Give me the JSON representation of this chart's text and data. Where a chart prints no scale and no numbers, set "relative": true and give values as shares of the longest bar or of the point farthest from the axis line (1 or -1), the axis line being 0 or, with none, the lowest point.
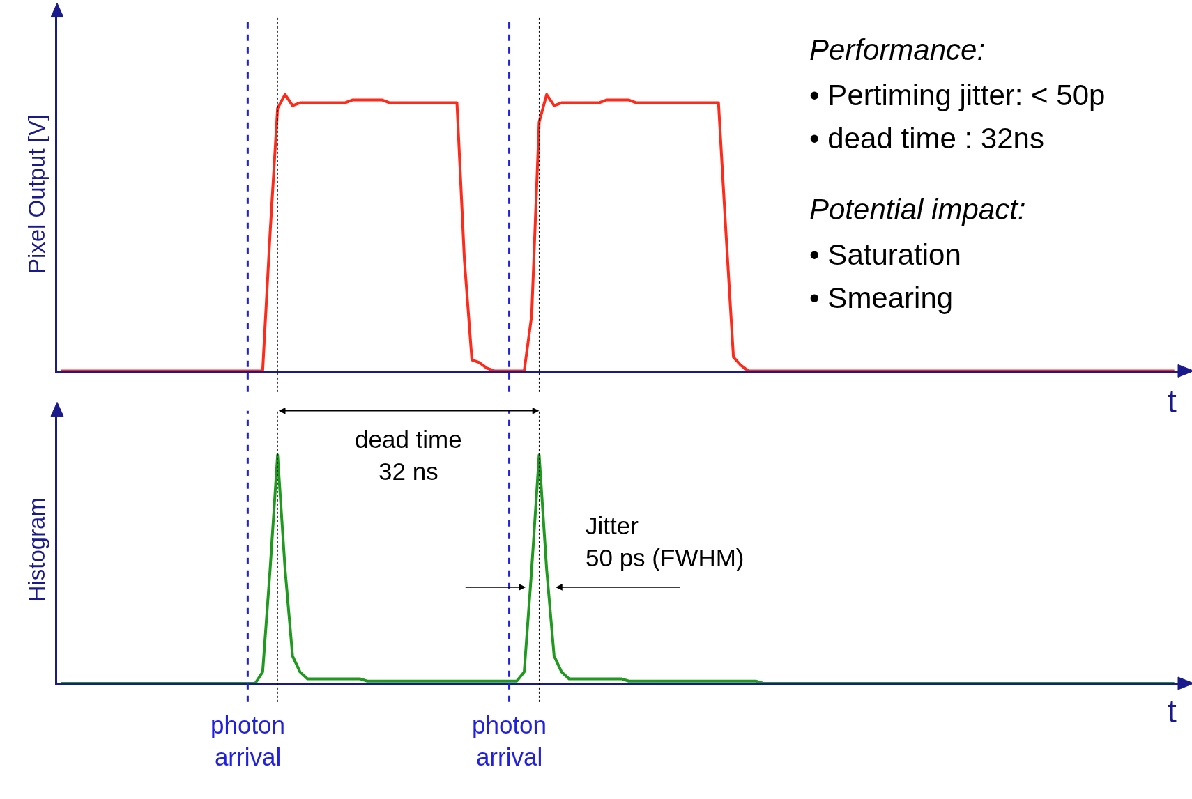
{
  "chart_data": [
    {
      "type": "line",
      "relative": true,
      "ylabel": "Pixel Output [V]",
      "xlabel": "t",
      "categories": [
        null,
        null,
        null,
        null,
        null,
        null,
        null,
        null,
        null,
        null,
        null,
        null,
        null,
        null,
        null,
        null,
        null,
        null,
        null,
        null,
        null,
        null,
        null,
        null,
        null,
        null,
        null,
        null,
        null,
        null,
        null,
        null,
        null,
        null,
        null,
        null,
        null,
        null,
        null,
        null,
        null,
        null,
        null,
        null,
        null,
        null,
        null,
        null,
        null,
        null,
        null,
        null,
        null,
        null,
        null,
        null,
        null,
        null,
        null,
        null,
        null,
        null,
        null,
        null,
        null,
        null,
        null,
        null,
        null,
        null,
        null,
        null,
        null,
        null,
        null,
        null,
        null,
        null,
        null,
        null,
        null,
        null,
        null,
        null,
        null,
        null,
        null,
        null,
        null,
        null,
        null,
        null,
        null,
        null,
        null,
        null,
        null,
        null,
        null,
        null,
        null,
        null,
        null,
        null,
        null,
        null,
        null,
        null,
        null,
        null,
        null,
        null,
        null,
        null,
        null,
        null,
        null,
        null,
        null,
        null,
        null,
        null,
        null,
        null,
        null,
        null,
        null,
        null,
        null,
        null,
        null,
        null,
        null,
        null,
        null,
        null,
        null,
        null,
        null,
        null,
        null,
        null,
        null,
        null,
        null,
        null,
        null,
        null,
        null,
        null
      ],
      "series": [
        {
          "color": "#ff2a1a",
          "values": [
            0,
            0,
            0,
            0,
            0,
            0,
            0,
            0,
            0,
            0,
            0,
            0,
            0,
            0,
            0,
            0,
            0,
            0,
            0,
            0,
            0,
            0,
            0,
            0,
            0,
            0,
            0,
            0,
            0.5,
            0.95,
            1.0,
            0.96,
            0.97,
            0.97,
            0.97,
            0.97,
            0.97,
            0.97,
            0.97,
            0.98,
            0.98,
            0.98,
            0.98,
            0.98,
            0.97,
            0.97,
            0.97,
            0.97,
            0.97,
            0.97,
            0.97,
            0.97,
            0.97,
            0.97,
            0.4,
            0.04,
            0.03,
            0.01,
            0,
            0,
            0,
            0,
            0,
            0.2,
            0.9,
            1.0,
            0.96,
            0.97,
            0.97,
            0.97,
            0.97,
            0.97,
            0.97,
            0.98,
            0.98,
            0.98,
            0.98,
            0.97,
            0.97,
            0.97,
            0.97,
            0.97,
            0.97,
            0.97,
            0.97,
            0.97,
            0.97,
            0.97,
            0.97,
            0.5,
            0.05,
            0.02,
            0,
            0,
            0,
            0,
            0,
            0,
            0,
            0,
            0,
            0,
            0,
            0,
            0,
            0,
            0,
            0,
            0,
            0,
            0,
            0,
            0,
            0,
            0,
            0,
            0,
            0,
            0,
            0,
            0,
            0,
            0,
            0,
            0,
            0,
            0,
            0,
            0,
            0,
            0,
            0,
            0,
            0,
            0,
            0,
            0,
            0,
            0,
            0,
            0,
            0,
            0,
            0,
            0,
            0,
            0,
            0,
            0,
            0
          ]
        }
      ],
      "annotations": [
        "Performance:",
        "• Pertiming jitter: < 50p",
        "• dead time : 32ns",
        "Potential impact:",
        "• Saturation",
        "• Smearing"
      ]
    },
    {
      "type": "line",
      "relative": true,
      "ylabel": "Histogram",
      "xlabel": "t",
      "categories": [
        null,
        null,
        null,
        null,
        null,
        null,
        null,
        null,
        null,
        null,
        null,
        null,
        null,
        null,
        null,
        null,
        null,
        null,
        null,
        null,
        null,
        null,
        null,
        null,
        null,
        null,
        null,
        null,
        null,
        null,
        null,
        null,
        null,
        null,
        null,
        null,
        null,
        null,
        null,
        null,
        null,
        null,
        null,
        null,
        null,
        null,
        null,
        null,
        null,
        null,
        null,
        null,
        null,
        null,
        null,
        null,
        null,
        null,
        null,
        null,
        null,
        null,
        null,
        null,
        null,
        null,
        null,
        null,
        null,
        null,
        null,
        null,
        null,
        null,
        null,
        null,
        null,
        null,
        null,
        null,
        null,
        null,
        null,
        null,
        null,
        null,
        null,
        null,
        null,
        null,
        null,
        null,
        null,
        null,
        null,
        null,
        null,
        null,
        null,
        null,
        null,
        null,
        null,
        null,
        null,
        null,
        null,
        null,
        null,
        null,
        null,
        null,
        null,
        null,
        null,
        null,
        null,
        null,
        null,
        null,
        null,
        null,
        null,
        null,
        null,
        null,
        null,
        null,
        null,
        null,
        null,
        null,
        null,
        null,
        null,
        null,
        null,
        null,
        null,
        null,
        null,
        null,
        null,
        null,
        null,
        null,
        null,
        null,
        null,
        null
      ],
      "series": [
        {
          "color": "#1f9a1f",
          "values": [
            0,
            0,
            0,
            0,
            0,
            0,
            0,
            0,
            0,
            0,
            0,
            0,
            0,
            0,
            0,
            0,
            0,
            0,
            0,
            0,
            0,
            0,
            0,
            0,
            0,
            0,
            0,
            0.05,
            0.5,
            1.0,
            0.5,
            0.12,
            0.05,
            0.02,
            0.02,
            0.02,
            0.02,
            0.02,
            0.02,
            0.02,
            0.02,
            0.01,
            0.01,
            0.01,
            0.01,
            0.01,
            0.01,
            0.01,
            0.01,
            0.01,
            0.01,
            0.01,
            0.01,
            0.01,
            0.01,
            0.01,
            0.01,
            0.01,
            0.01,
            0.01,
            0.01,
            0.01,
            0.05,
            0.5,
            1.0,
            0.5,
            0.12,
            0.05,
            0.02,
            0.02,
            0.02,
            0.02,
            0.02,
            0.02,
            0.02,
            0.02,
            0.01,
            0.01,
            0.01,
            0.01,
            0.01,
            0.01,
            0.01,
            0.01,
            0.01,
            0.01,
            0.01,
            0.01,
            0.01,
            0.01,
            0.01,
            0.01,
            0.01,
            0.01,
            0,
            0,
            0,
            0,
            0,
            0,
            0,
            0,
            0,
            0,
            0,
            0,
            0,
            0,
            0,
            0,
            0,
            0,
            0,
            0,
            0,
            0,
            0,
            0,
            0,
            0,
            0,
            0,
            0,
            0,
            0,
            0,
            0,
            0,
            0,
            0,
            0,
            0,
            0,
            0,
            0,
            0,
            0,
            0,
            0,
            0,
            0,
            0,
            0,
            0,
            0,
            0,
            0,
            0,
            0,
            0
          ]
        }
      ],
      "annotations": [
        "dead time\n32 ns",
        "Jitter\n50 ps (FWHM)",
        "photon\narrival",
        "photon\narrival"
      ]
    }
  ]
}
